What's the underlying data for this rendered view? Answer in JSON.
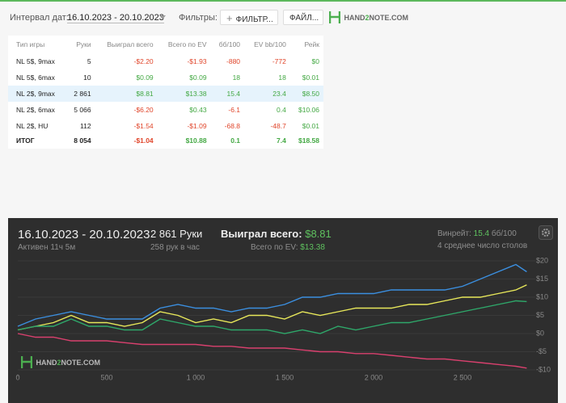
{
  "toolbar": {
    "date_label": "Интервал дат:",
    "date_range": "16.10.2023 - 20.10.2023",
    "filters_label": "Фильтры:",
    "filter_button": "ФИЛЬТР...",
    "file_button": "ФАЙЛ...",
    "logo": [
      "HAND",
      "2",
      "NOTE.COM"
    ]
  },
  "table": {
    "columns": [
      "Тип игры",
      "Руки",
      "Выиграл всего",
      "Всего по EV",
      "бб/100",
      "EV bb/100",
      "Рейк"
    ],
    "rows": [
      [
        "NL 5$, 9max",
        "5",
        "-$2.20",
        "-$1.93",
        "-880",
        "-772",
        "$0"
      ],
      [
        "NL 5$, 6max",
        "10",
        "$0.09",
        "$0.09",
        "18",
        "18",
        "$0.01"
      ],
      [
        "NL 2$, 9max",
        "2 861",
        "$8.81",
        "$13.38",
        "15.4",
        "23.4",
        "$8.50"
      ],
      [
        "NL 2$, 6max",
        "5 066",
        "-$6.20",
        "$0.43",
        "-6.1",
        "0.4",
        "$10.06"
      ],
      [
        "NL 2$, HU",
        "112",
        "-$1.54",
        "-$1.09",
        "-68.8",
        "-48.7",
        "$0.01"
      ],
      [
        "ИТОГ",
        "8 054",
        "-$1.04",
        "$10.88",
        "0.1",
        "7.4",
        "$18.58"
      ]
    ]
  },
  "summary": {
    "date_range": "16.10.2023 - 20.10.2023",
    "active": "Активен 11ч 5м",
    "hands": "2 861 Руки",
    "rate": "258 рук в час",
    "won_label": "Выиграл всего:",
    "won_value": "$8.81",
    "ev_label": "Всего по EV:",
    "ev_value": "$13.38",
    "winrate_label": "Винрейт:",
    "winrate_value": "15.4",
    "winrate_unit": "бб/100",
    "tables": "4 среднее число столов",
    "watermark": [
      "HAND",
      "2",
      "NOTE.COM"
    ]
  },
  "chart_data": {
    "type": "line",
    "x": [
      0,
      100,
      200,
      300,
      400,
      500,
      600,
      700,
      800,
      900,
      1000,
      1100,
      1200,
      1300,
      1400,
      1500,
      1600,
      1700,
      1800,
      1900,
      2000,
      2100,
      2200,
      2300,
      2400,
      2500,
      2600,
      2700,
      2800,
      2861
    ],
    "series": [
      {
        "color": "#3b8fe0",
        "values": [
          2,
          4,
          5,
          6,
          5,
          4,
          4,
          4,
          7,
          8,
          7,
          7,
          6,
          7,
          7,
          8,
          10,
          10,
          11,
          11,
          11,
          12,
          12,
          12,
          12,
          13,
          15,
          17,
          19,
          17
        ]
      },
      {
        "color": "#e8e85a",
        "values": [
          1,
          2,
          3,
          5,
          3,
          3,
          2,
          3,
          6,
          5,
          3,
          4,
          3,
          5,
          5,
          4,
          6,
          5,
          6,
          7,
          7,
          7,
          8,
          8,
          9,
          10,
          10,
          11,
          12,
          13.4
        ]
      },
      {
        "color": "#2ea86a",
        "values": [
          1,
          2,
          2,
          4,
          2,
          2,
          1,
          1,
          4,
          3,
          2,
          2,
          1,
          1,
          1,
          0,
          1,
          0,
          2,
          1,
          2,
          3,
          3,
          4,
          5,
          6,
          7,
          8,
          9,
          8.8
        ]
      },
      {
        "color": "#d9406e",
        "values": [
          0,
          -1,
          -1,
          -2,
          -2,
          -2,
          -2.5,
          -3,
          -3,
          -3,
          -3,
          -3.5,
          -3.5,
          -4,
          -4,
          -4,
          -4.5,
          -5,
          -5,
          -5.5,
          -5.5,
          -6,
          -6.5,
          -7,
          -7,
          -7.5,
          -8,
          -8.5,
          -9,
          -9.5
        ]
      }
    ],
    "xlim": [
      0,
      2900
    ],
    "ylim": [
      -11,
      21
    ],
    "xticks": [
      0,
      500,
      {
        "value": 1000,
        "label": "1 000"
      },
      {
        "value": 1500,
        "label": "1 500"
      },
      {
        "value": 2000,
        "label": "2 000"
      },
      {
        "value": 2500,
        "label": "2 500"
      }
    ],
    "yticks": [
      {
        "value": 20,
        "label": "$20"
      },
      {
        "value": 15,
        "label": "$15"
      },
      {
        "value": 10,
        "label": "$10"
      },
      {
        "value": 5,
        "label": "$5"
      },
      {
        "value": 0,
        "label": "$0"
      },
      {
        "value": -5,
        "label": "-$5"
      },
      {
        "value": -10,
        "label": "-$10"
      }
    ],
    "grid": true
  }
}
